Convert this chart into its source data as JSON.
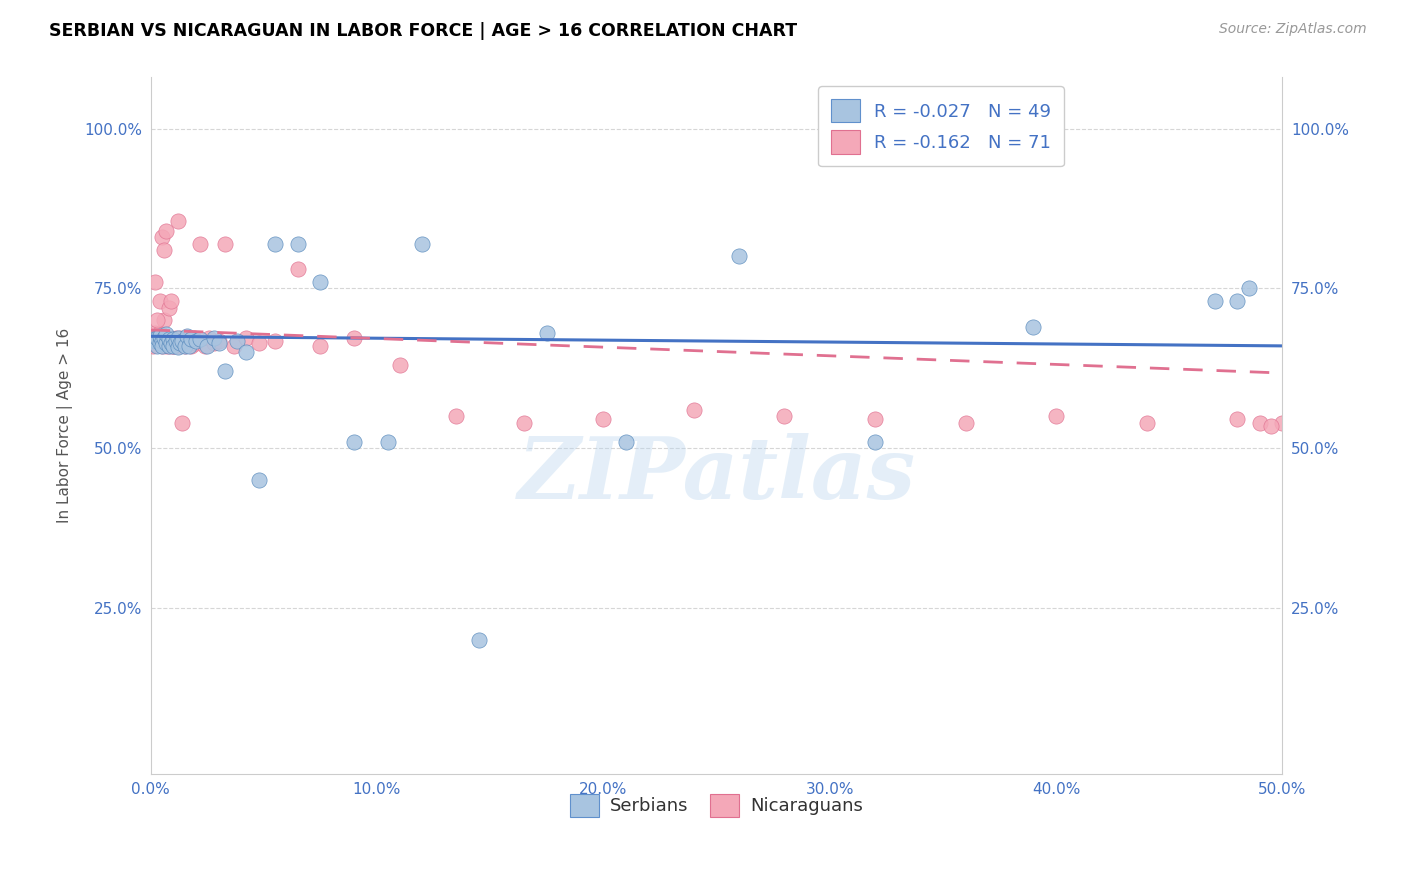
{
  "title": "SERBIAN VS NICARAGUAN IN LABOR FORCE | AGE > 16 CORRELATION CHART",
  "source": "Source: ZipAtlas.com",
  "ylabel": "In Labor Force | Age > 16",
  "xlim": [
    0.0,
    0.5
  ],
  "ylim": [
    -0.01,
    1.08
  ],
  "yticks": [
    0.25,
    0.5,
    0.75,
    1.0
  ],
  "ytick_labels": [
    "25.0%",
    "50.0%",
    "75.0%",
    "100.0%"
  ],
  "xticks": [
    0.0,
    0.1,
    0.2,
    0.3,
    0.4,
    0.5
  ],
  "xtick_labels": [
    "0.0%",
    "10.0%",
    "20.0%",
    "30.0%",
    "40.0%",
    "50.0%"
  ],
  "watermark": "ZIPatlas",
  "legend_r_serbian": "R = -0.027",
  "legend_n_serbian": "N = 49",
  "legend_r_nicaraguan": "R = -0.162",
  "legend_n_nicaraguan": "N = 71",
  "serbian_color": "#a8c4e0",
  "nicaraguan_color": "#f4a8b8",
  "trend_serbian_color": "#4472c4",
  "trend_nicaraguan_color": "#e07090",
  "background_color": "#ffffff",
  "grid_color": "#cccccc",
  "axis_tick_color": "#4472c4",
  "title_color": "#000000",
  "trend_serbian_intercept": 0.675,
  "trend_serbian_slope": -0.03,
  "trend_nicaraguan_intercept": 0.685,
  "trend_nicaraguan_slope": -0.135,
  "serbian_points_x": [
    0.001,
    0.002,
    0.003,
    0.003,
    0.004,
    0.004,
    0.005,
    0.005,
    0.006,
    0.007,
    0.007,
    0.008,
    0.008,
    0.009,
    0.01,
    0.01,
    0.011,
    0.012,
    0.012,
    0.013,
    0.014,
    0.015,
    0.016,
    0.017,
    0.018,
    0.02,
    0.022,
    0.025,
    0.028,
    0.03,
    0.033,
    0.038,
    0.042,
    0.048,
    0.055,
    0.065,
    0.075,
    0.09,
    0.105,
    0.12,
    0.145,
    0.175,
    0.21,
    0.26,
    0.32,
    0.39,
    0.47,
    0.48,
    0.485
  ],
  "serbian_points_y": [
    0.67,
    0.668,
    0.66,
    0.672,
    0.665,
    0.675,
    0.668,
    0.66,
    0.672,
    0.665,
    0.678,
    0.66,
    0.67,
    0.665,
    0.67,
    0.66,
    0.668,
    0.658,
    0.672,
    0.665,
    0.668,
    0.66,
    0.675,
    0.66,
    0.67,
    0.668,
    0.67,
    0.66,
    0.672,
    0.665,
    0.62,
    0.668,
    0.65,
    0.45,
    0.82,
    0.82,
    0.76,
    0.51,
    0.51,
    0.82,
    0.2,
    0.68,
    0.51,
    0.8,
    0.51,
    0.69,
    0.73,
    0.73,
    0.75
  ],
  "nicaraguan_points_x": [
    0.001,
    0.002,
    0.002,
    0.003,
    0.003,
    0.004,
    0.004,
    0.005,
    0.005,
    0.006,
    0.006,
    0.007,
    0.007,
    0.008,
    0.008,
    0.009,
    0.009,
    0.01,
    0.01,
    0.011,
    0.011,
    0.012,
    0.012,
    0.013,
    0.013,
    0.014,
    0.015,
    0.015,
    0.016,
    0.017,
    0.018,
    0.019,
    0.02,
    0.022,
    0.024,
    0.026,
    0.028,
    0.03,
    0.033,
    0.037,
    0.042,
    0.048,
    0.055,
    0.065,
    0.075,
    0.09,
    0.11,
    0.135,
    0.165,
    0.2,
    0.24,
    0.28,
    0.32,
    0.36,
    0.4,
    0.44,
    0.48,
    0.49,
    0.5,
    0.495,
    0.002,
    0.003,
    0.004,
    0.005,
    0.006,
    0.007,
    0.008,
    0.009,
    0.01,
    0.012,
    0.014
  ],
  "nicaraguan_points_y": [
    0.66,
    0.67,
    0.68,
    0.662,
    0.675,
    0.668,
    0.68,
    0.66,
    0.672,
    0.7,
    0.665,
    0.66,
    0.672,
    0.668,
    0.66,
    0.672,
    0.665,
    0.668,
    0.66,
    0.672,
    0.665,
    0.668,
    0.66,
    0.672,
    0.665,
    0.668,
    0.66,
    0.672,
    0.665,
    0.668,
    0.66,
    0.672,
    0.665,
    0.82,
    0.66,
    0.672,
    0.665,
    0.668,
    0.82,
    0.66,
    0.672,
    0.665,
    0.668,
    0.78,
    0.66,
    0.672,
    0.63,
    0.55,
    0.54,
    0.545,
    0.56,
    0.55,
    0.545,
    0.54,
    0.55,
    0.54,
    0.545,
    0.54,
    0.54,
    0.535,
    0.76,
    0.7,
    0.73,
    0.83,
    0.81,
    0.84,
    0.72,
    0.73,
    0.66,
    0.855,
    0.54
  ]
}
